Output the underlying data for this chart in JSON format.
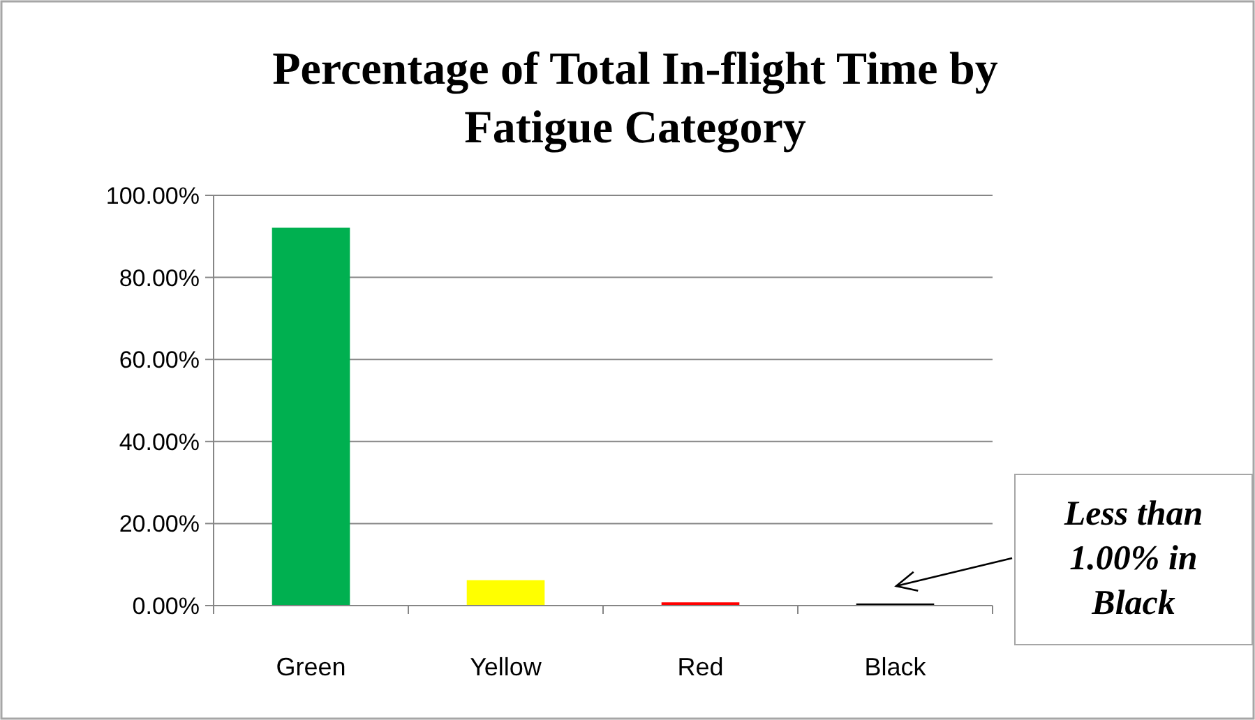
{
  "chart_data": {
    "type": "bar",
    "title": "Percentage of Total In-flight Time by Fatigue Category",
    "categories": [
      "Green",
      "Yellow",
      "Red",
      "Black"
    ],
    "values": [
      92.1,
      6.2,
      0.8,
      0.5
    ],
    "colors": [
      "#00b050",
      "#ffff00",
      "#ff0000",
      "#000000"
    ],
    "ylim": [
      0,
      100
    ],
    "yticks": [
      {
        "value": 0,
        "label": "0.00%"
      },
      {
        "value": 20,
        "label": "20.00%"
      },
      {
        "value": 40,
        "label": "40.00%"
      },
      {
        "value": 60,
        "label": "60.00%"
      },
      {
        "value": 80,
        "label": "80.00%"
      },
      {
        "value": 100,
        "label": "100.00%"
      }
    ],
    "grid": "y",
    "annotations": [
      "Less than 1.00% in Black"
    ]
  }
}
